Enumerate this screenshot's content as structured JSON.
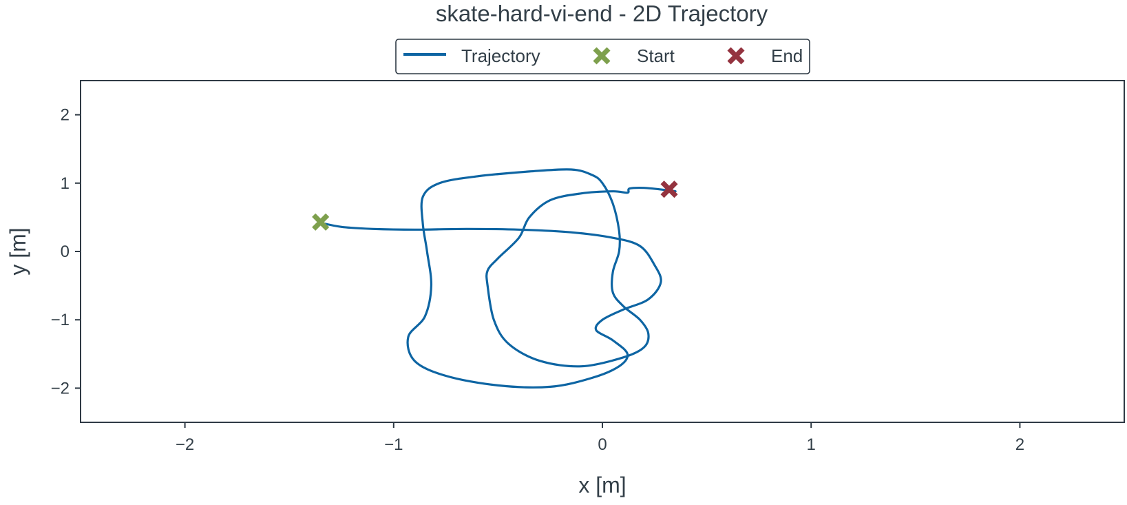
{
  "chart_data": {
    "type": "line",
    "title": "skate-hard-vi-end - 2D Trajectory",
    "xlabel": "x [m]",
    "ylabel": "y [m]",
    "xlim": [
      -2.5,
      2.5
    ],
    "ylim": [
      -2.5,
      2.5
    ],
    "xticks": [
      -2,
      -1,
      0,
      1,
      2
    ],
    "yticks": [
      -2,
      -1,
      0,
      1,
      2
    ],
    "xtick_labels": [
      "−2",
      "−1",
      "0",
      "1",
      "2"
    ],
    "ytick_labels": [
      "−2",
      "−1",
      "0",
      "1",
      "2"
    ],
    "grid": false,
    "legend": {
      "placement": "top-center",
      "entries": [
        {
          "label": "Trajectory",
          "kind": "line",
          "color": "#0e65a3"
        },
        {
          "label": "Start",
          "kind": "x-marker",
          "color": "#7ea04d"
        },
        {
          "label": "End",
          "kind": "x-marker",
          "color": "#94333f"
        }
      ]
    },
    "series": [
      {
        "name": "Trajectory",
        "color": "#0e65a3",
        "points": [
          [
            -1.35,
            0.42
          ],
          [
            -1.25,
            0.36
          ],
          [
            -1.1,
            0.33
          ],
          [
            -0.9,
            0.32
          ],
          [
            -0.65,
            0.33
          ],
          [
            -0.4,
            0.32
          ],
          [
            -0.15,
            0.28
          ],
          [
            0.05,
            0.2
          ],
          [
            0.18,
            0.08
          ],
          [
            0.25,
            -0.2
          ],
          [
            0.28,
            -0.45
          ],
          [
            0.22,
            -0.7
          ],
          [
            0.1,
            -0.85
          ],
          [
            0.0,
            -1.0
          ],
          [
            -0.03,
            -1.15
          ],
          [
            0.05,
            -1.3
          ],
          [
            0.12,
            -1.5
          ],
          [
            0.08,
            -1.68
          ],
          [
            -0.05,
            -1.85
          ],
          [
            -0.25,
            -1.98
          ],
          [
            -0.5,
            -1.96
          ],
          [
            -0.75,
            -1.82
          ],
          [
            -0.9,
            -1.6
          ],
          [
            -0.93,
            -1.25
          ],
          [
            -0.85,
            -0.95
          ],
          [
            -0.82,
            -0.5
          ],
          [
            -0.84,
            0.0
          ],
          [
            -0.86,
            0.4
          ],
          [
            -0.86,
            0.8
          ],
          [
            -0.78,
            1.0
          ],
          [
            -0.6,
            1.1
          ],
          [
            -0.35,
            1.17
          ],
          [
            -0.15,
            1.2
          ],
          [
            -0.05,
            1.12
          ],
          [
            0.0,
            1.0
          ],
          [
            0.05,
            0.7
          ],
          [
            0.08,
            0.3
          ],
          [
            0.08,
            0.0
          ],
          [
            0.05,
            -0.3
          ],
          [
            0.05,
            -0.6
          ],
          [
            0.1,
            -0.8
          ],
          [
            0.18,
            -1.0
          ],
          [
            0.22,
            -1.2
          ],
          [
            0.2,
            -1.4
          ],
          [
            0.1,
            -1.55
          ],
          [
            -0.1,
            -1.68
          ],
          [
            -0.3,
            -1.6
          ],
          [
            -0.45,
            -1.35
          ],
          [
            -0.52,
            -1.0
          ],
          [
            -0.55,
            -0.5
          ],
          [
            -0.55,
            -0.28
          ],
          [
            -0.5,
            -0.1
          ],
          [
            -0.4,
            0.2
          ],
          [
            -0.35,
            0.5
          ],
          [
            -0.25,
            0.75
          ],
          [
            -0.1,
            0.85
          ],
          [
            0.05,
            0.88
          ],
          [
            0.12,
            0.86
          ],
          [
            0.13,
            0.92
          ],
          [
            0.2,
            0.93
          ],
          [
            0.3,
            0.9
          ],
          [
            0.35,
            0.88
          ]
        ]
      }
    ],
    "markers": [
      {
        "name": "Start",
        "x": -1.35,
        "y": 0.43,
        "color": "#7ea04d"
      },
      {
        "name": "End",
        "x": 0.32,
        "y": 0.91,
        "color": "#94333f"
      }
    ]
  }
}
